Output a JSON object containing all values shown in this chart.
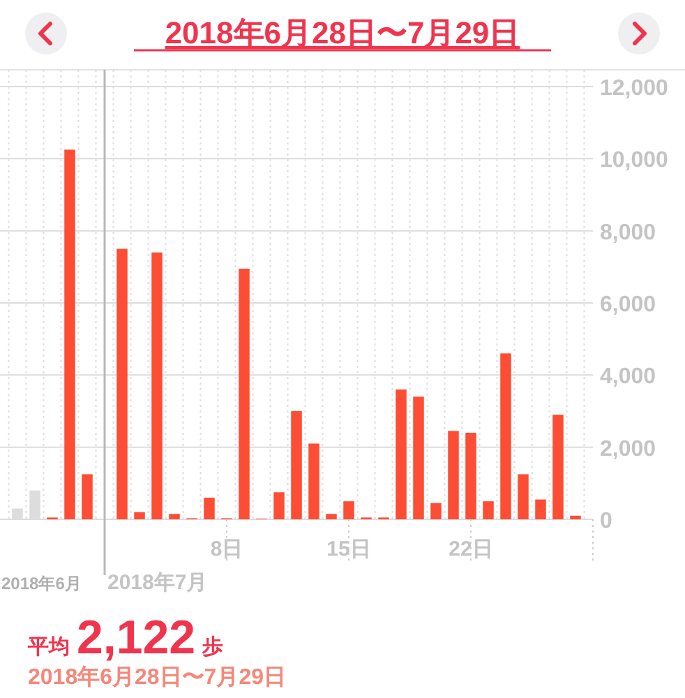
{
  "chart_data": {
    "type": "bar",
    "title": "2018年6月28日〜7月29日",
    "x": [
      "2018-06-26",
      "2018-06-27",
      "2018-06-28",
      "2018-06-29",
      "2018-06-30",
      "2018-07-01",
      "2018-07-02",
      "2018-07-03",
      "2018-07-04",
      "2018-07-05",
      "2018-07-06",
      "2018-07-07",
      "2018-07-08",
      "2018-07-09",
      "2018-07-10",
      "2018-07-11",
      "2018-07-12",
      "2018-07-13",
      "2018-07-14",
      "2018-07-15",
      "2018-07-16",
      "2018-07-17",
      "2018-07-18",
      "2018-07-19",
      "2018-07-20",
      "2018-07-21",
      "2018-07-22",
      "2018-07-23",
      "2018-07-24",
      "2018-07-25",
      "2018-07-26",
      "2018-07-27",
      "2018-07-28"
    ],
    "values": [
      300,
      800,
      50,
      10250,
      1250,
      0,
      7500,
      200,
      7400,
      150,
      30,
      600,
      30,
      6950,
      20,
      750,
      3000,
      2100,
      150,
      500,
      50,
      50,
      3600,
      3400,
      450,
      2450,
      2400,
      500,
      4600,
      1250,
      550,
      2900,
      100
    ],
    "colors": [
      "#dddddd",
      "#dddddd",
      "#fd4d34",
      "#fd4d34",
      "#fd4d34",
      "#fd4d34",
      "#fd4d34",
      "#fd4d34",
      "#fd4d34",
      "#fd4d34",
      "#fd4d34",
      "#fd4d34",
      "#fd4d34",
      "#fd4d34",
      "#fd4d34",
      "#fd4d34",
      "#fd4d34",
      "#fd4d34",
      "#fd4d34",
      "#fd4d34",
      "#fd4d34",
      "#fd4d34",
      "#fd4d34",
      "#fd4d34",
      "#fd4d34",
      "#fd4d34",
      "#fd4d34",
      "#fd4d34",
      "#fd4d34",
      "#fd4d34",
      "#fd4d34",
      "#fd4d34",
      "#fd4d34"
    ],
    "xlim": [
      "2018-06-25",
      "2018-07-29"
    ],
    "xticks": [
      {
        "value": "2018-07-08",
        "label": "8日"
      },
      {
        "value": "2018-07-15",
        "label": "15日"
      },
      {
        "value": "2018-07-22",
        "label": "22日"
      }
    ],
    "ylim": [
      0,
      12000
    ],
    "yticks": [
      {
        "value": 0,
        "label": "0"
      },
      {
        "value": 2000,
        "label": "2,000"
      },
      {
        "value": 4000,
        "label": "4,000"
      },
      {
        "value": 6000,
        "label": "6,000"
      },
      {
        "value": 8000,
        "label": "8,000"
      },
      {
        "value": 10000,
        "label": "10,000"
      },
      {
        "value": 12000,
        "label": "12,000"
      }
    ],
    "ref_lines": [
      {
        "axis": "x",
        "value": "2018-07-01",
        "label": "2018年7月",
        "color": "#b8b8b8"
      }
    ],
    "grid": true,
    "annotations": [
      "2018年6月",
      "平均",
      "2,122",
      "歩",
      "2018年6月28日〜7月29日"
    ]
  }
}
